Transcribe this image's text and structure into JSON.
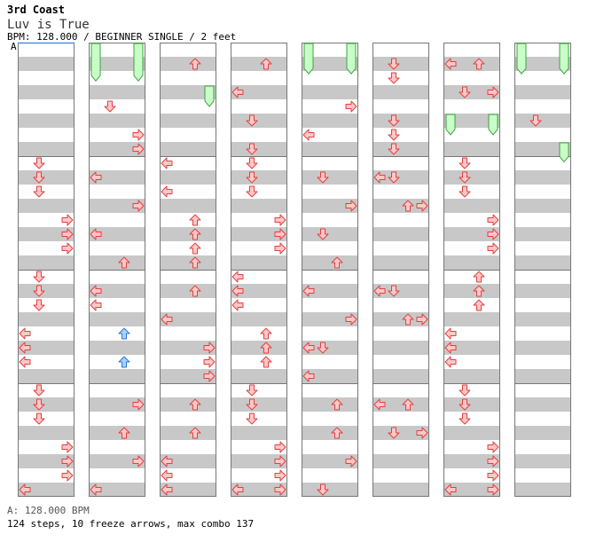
{
  "header": {
    "artist": "3rd Coast",
    "title": "Luv is True",
    "info": "BPM: 128.000 / BEGINNER SINGLE / 2 feet",
    "marker": "A"
  },
  "footer": {
    "bpm_line": "A: 128.000 BPM",
    "stats": "124 steps, 10 freeze arrows, max combo 137"
  },
  "colors": {
    "stripe": "#c8c8c8",
    "column_border": "#777777",
    "arrow_red": "#ffc8c8",
    "arrow_red_stroke": "#e04040",
    "arrow_blue": "#a8d0ff",
    "arrow_blue_stroke": "#2f78d0",
    "freeze_fill": "#c8ffc8",
    "freeze_stroke": "#40a040"
  },
  "chart": {
    "columns": 8,
    "measures_per_column": 4,
    "rows_per_measure": 8,
    "lanes": [
      "left",
      "down",
      "up",
      "right"
    ],
    "freezes": [
      {
        "col": 1,
        "lane": "left",
        "start": 0,
        "end": 2.7
      },
      {
        "col": 1,
        "lane": "right",
        "start": 0,
        "end": 2.7
      },
      {
        "col": 2,
        "lane": "right",
        "start": 3,
        "end": 4.5
      },
      {
        "col": 4,
        "lane": "left",
        "start": 0,
        "end": 2.2
      },
      {
        "col": 4,
        "lane": "right",
        "start": 0,
        "end": 2.2
      },
      {
        "col": 6,
        "lane": "left",
        "start": 5,
        "end": 6.5
      },
      {
        "col": 6,
        "lane": "right",
        "start": 5,
        "end": 6.5
      },
      {
        "col": 7,
        "lane": "left",
        "start": 0,
        "end": 2.2
      },
      {
        "col": 7,
        "lane": "right",
        "start": 0,
        "end": 2.2
      },
      {
        "col": 7,
        "lane": "right",
        "start": 7,
        "end": 8.4
      }
    ],
    "steps": [
      {
        "col": 0,
        "row": 8,
        "lane": "down"
      },
      {
        "col": 0,
        "row": 9,
        "lane": "down"
      },
      {
        "col": 0,
        "row": 10,
        "lane": "down"
      },
      {
        "col": 0,
        "row": 12,
        "lane": "right"
      },
      {
        "col": 0,
        "row": 13,
        "lane": "right"
      },
      {
        "col": 0,
        "row": 14,
        "lane": "right"
      },
      {
        "col": 0,
        "row": 16,
        "lane": "down"
      },
      {
        "col": 0,
        "row": 17,
        "lane": "down"
      },
      {
        "col": 0,
        "row": 18,
        "lane": "down"
      },
      {
        "col": 0,
        "row": 20,
        "lane": "left"
      },
      {
        "col": 0,
        "row": 21,
        "lane": "left"
      },
      {
        "col": 0,
        "row": 22,
        "lane": "left"
      },
      {
        "col": 0,
        "row": 24,
        "lane": "down"
      },
      {
        "col": 0,
        "row": 25,
        "lane": "down"
      },
      {
        "col": 0,
        "row": 26,
        "lane": "down"
      },
      {
        "col": 0,
        "row": 28,
        "lane": "right"
      },
      {
        "col": 0,
        "row": 29,
        "lane": "right"
      },
      {
        "col": 0,
        "row": 30,
        "lane": "right"
      },
      {
        "col": 0,
        "row": 31,
        "lane": "left"
      },
      {
        "col": 1,
        "row": 4,
        "lane": "down"
      },
      {
        "col": 1,
        "row": 6,
        "lane": "right"
      },
      {
        "col": 1,
        "row": 7,
        "lane": "right"
      },
      {
        "col": 1,
        "row": 9,
        "lane": "left"
      },
      {
        "col": 1,
        "row": 11,
        "lane": "right"
      },
      {
        "col": 1,
        "row": 13,
        "lane": "left"
      },
      {
        "col": 1,
        "row": 15,
        "lane": "up"
      },
      {
        "col": 1,
        "row": 17,
        "lane": "left"
      },
      {
        "col": 1,
        "row": 18,
        "lane": "left"
      },
      {
        "col": 1,
        "row": 20,
        "lane": "up",
        "blue": true
      },
      {
        "col": 1,
        "row": 22,
        "lane": "up",
        "blue": true
      },
      {
        "col": 1,
        "row": 25,
        "lane": "right"
      },
      {
        "col": 1,
        "row": 27,
        "lane": "up"
      },
      {
        "col": 1,
        "row": 29,
        "lane": "right"
      },
      {
        "col": 1,
        "row": 31,
        "lane": "left"
      },
      {
        "col": 2,
        "row": 1,
        "lane": "up"
      },
      {
        "col": 2,
        "row": 8,
        "lane": "left"
      },
      {
        "col": 2,
        "row": 10,
        "lane": "left"
      },
      {
        "col": 2,
        "row": 12,
        "lane": "up"
      },
      {
        "col": 2,
        "row": 13,
        "lane": "up"
      },
      {
        "col": 2,
        "row": 14,
        "lane": "up"
      },
      {
        "col": 2,
        "row": 15,
        "lane": "up"
      },
      {
        "col": 2,
        "row": 17,
        "lane": "up"
      },
      {
        "col": 2,
        "row": 19,
        "lane": "left"
      },
      {
        "col": 2,
        "row": 21,
        "lane": "right"
      },
      {
        "col": 2,
        "row": 22,
        "lane": "right"
      },
      {
        "col": 2,
        "row": 23,
        "lane": "right"
      },
      {
        "col": 2,
        "row": 25,
        "lane": "up"
      },
      {
        "col": 2,
        "row": 27,
        "lane": "up"
      },
      {
        "col": 2,
        "row": 29,
        "lane": "left"
      },
      {
        "col": 2,
        "row": 30,
        "lane": "left"
      },
      {
        "col": 2,
        "row": 31,
        "lane": "left"
      },
      {
        "col": 3,
        "row": 1,
        "lane": "up"
      },
      {
        "col": 3,
        "row": 3,
        "lane": "left"
      },
      {
        "col": 3,
        "row": 5,
        "lane": "down"
      },
      {
        "col": 3,
        "row": 7,
        "lane": "down"
      },
      {
        "col": 3,
        "row": 8,
        "lane": "down"
      },
      {
        "col": 3,
        "row": 9,
        "lane": "down"
      },
      {
        "col": 3,
        "row": 10,
        "lane": "down"
      },
      {
        "col": 3,
        "row": 12,
        "lane": "right"
      },
      {
        "col": 3,
        "row": 13,
        "lane": "right"
      },
      {
        "col": 3,
        "row": 14,
        "lane": "right"
      },
      {
        "col": 3,
        "row": 16,
        "lane": "left"
      },
      {
        "col": 3,
        "row": 17,
        "lane": "left"
      },
      {
        "col": 3,
        "row": 18,
        "lane": "left"
      },
      {
        "col": 3,
        "row": 20,
        "lane": "up"
      },
      {
        "col": 3,
        "row": 21,
        "lane": "up"
      },
      {
        "col": 3,
        "row": 22,
        "lane": "up"
      },
      {
        "col": 3,
        "row": 24,
        "lane": "down"
      },
      {
        "col": 3,
        "row": 25,
        "lane": "down"
      },
      {
        "col": 3,
        "row": 26,
        "lane": "down"
      },
      {
        "col": 3,
        "row": 28,
        "lane": "right"
      },
      {
        "col": 3,
        "row": 29,
        "lane": "right"
      },
      {
        "col": 3,
        "row": 30,
        "lane": "right"
      },
      {
        "col": 3,
        "row": 31,
        "lane": "left"
      },
      {
        "col": 3,
        "row": 31,
        "lane": "right"
      },
      {
        "col": 4,
        "row": 4,
        "lane": "right"
      },
      {
        "col": 4,
        "row": 6,
        "lane": "left"
      },
      {
        "col": 4,
        "row": 9,
        "lane": "down"
      },
      {
        "col": 4,
        "row": 11,
        "lane": "right"
      },
      {
        "col": 4,
        "row": 13,
        "lane": "down"
      },
      {
        "col": 4,
        "row": 15,
        "lane": "up"
      },
      {
        "col": 4,
        "row": 17,
        "lane": "left"
      },
      {
        "col": 4,
        "row": 19,
        "lane": "right"
      },
      {
        "col": 4,
        "row": 21,
        "lane": "left"
      },
      {
        "col": 4,
        "row": 21,
        "lane": "down"
      },
      {
        "col": 4,
        "row": 23,
        "lane": "left"
      },
      {
        "col": 4,
        "row": 25,
        "lane": "up"
      },
      {
        "col": 4,
        "row": 27,
        "lane": "up"
      },
      {
        "col": 4,
        "row": 29,
        "lane": "right"
      },
      {
        "col": 4,
        "row": 31,
        "lane": "down"
      },
      {
        "col": 5,
        "row": 1,
        "lane": "down"
      },
      {
        "col": 5,
        "row": 2,
        "lane": "down"
      },
      {
        "col": 5,
        "row": 5,
        "lane": "down"
      },
      {
        "col": 5,
        "row": 6,
        "lane": "down"
      },
      {
        "col": 5,
        "row": 7,
        "lane": "down"
      },
      {
        "col": 5,
        "row": 9,
        "lane": "left"
      },
      {
        "col": 5,
        "row": 9,
        "lane": "down"
      },
      {
        "col": 5,
        "row": 11,
        "lane": "up"
      },
      {
        "col": 5,
        "row": 11,
        "lane": "right"
      },
      {
        "col": 5,
        "row": 17,
        "lane": "left"
      },
      {
        "col": 5,
        "row": 17,
        "lane": "down"
      },
      {
        "col": 5,
        "row": 19,
        "lane": "up"
      },
      {
        "col": 5,
        "row": 19,
        "lane": "right"
      },
      {
        "col": 5,
        "row": 25,
        "lane": "left"
      },
      {
        "col": 5,
        "row": 25,
        "lane": "up"
      },
      {
        "col": 5,
        "row": 27,
        "lane": "down"
      },
      {
        "col": 5,
        "row": 27,
        "lane": "right"
      },
      {
        "col": 6,
        "row": 1,
        "lane": "left"
      },
      {
        "col": 6,
        "row": 1,
        "lane": "up"
      },
      {
        "col": 6,
        "row": 3,
        "lane": "down"
      },
      {
        "col": 6,
        "row": 3,
        "lane": "right"
      },
      {
        "col": 6,
        "row": 8,
        "lane": "down"
      },
      {
        "col": 6,
        "row": 9,
        "lane": "down"
      },
      {
        "col": 6,
        "row": 10,
        "lane": "down"
      },
      {
        "col": 6,
        "row": 12,
        "lane": "right"
      },
      {
        "col": 6,
        "row": 13,
        "lane": "right"
      },
      {
        "col": 6,
        "row": 14,
        "lane": "right"
      },
      {
        "col": 6,
        "row": 16,
        "lane": "up"
      },
      {
        "col": 6,
        "row": 17,
        "lane": "up"
      },
      {
        "col": 6,
        "row": 18,
        "lane": "up"
      },
      {
        "col": 6,
        "row": 20,
        "lane": "left"
      },
      {
        "col": 6,
        "row": 21,
        "lane": "left"
      },
      {
        "col": 6,
        "row": 22,
        "lane": "left"
      },
      {
        "col": 6,
        "row": 24,
        "lane": "down"
      },
      {
        "col": 6,
        "row": 25,
        "lane": "down"
      },
      {
        "col": 6,
        "row": 26,
        "lane": "down"
      },
      {
        "col": 6,
        "row": 28,
        "lane": "right"
      },
      {
        "col": 6,
        "row": 29,
        "lane": "right"
      },
      {
        "col": 6,
        "row": 30,
        "lane": "right"
      },
      {
        "col": 6,
        "row": 31,
        "lane": "left"
      },
      {
        "col": 6,
        "row": 31,
        "lane": "right"
      },
      {
        "col": 7,
        "row": 5,
        "lane": "down"
      }
    ]
  }
}
